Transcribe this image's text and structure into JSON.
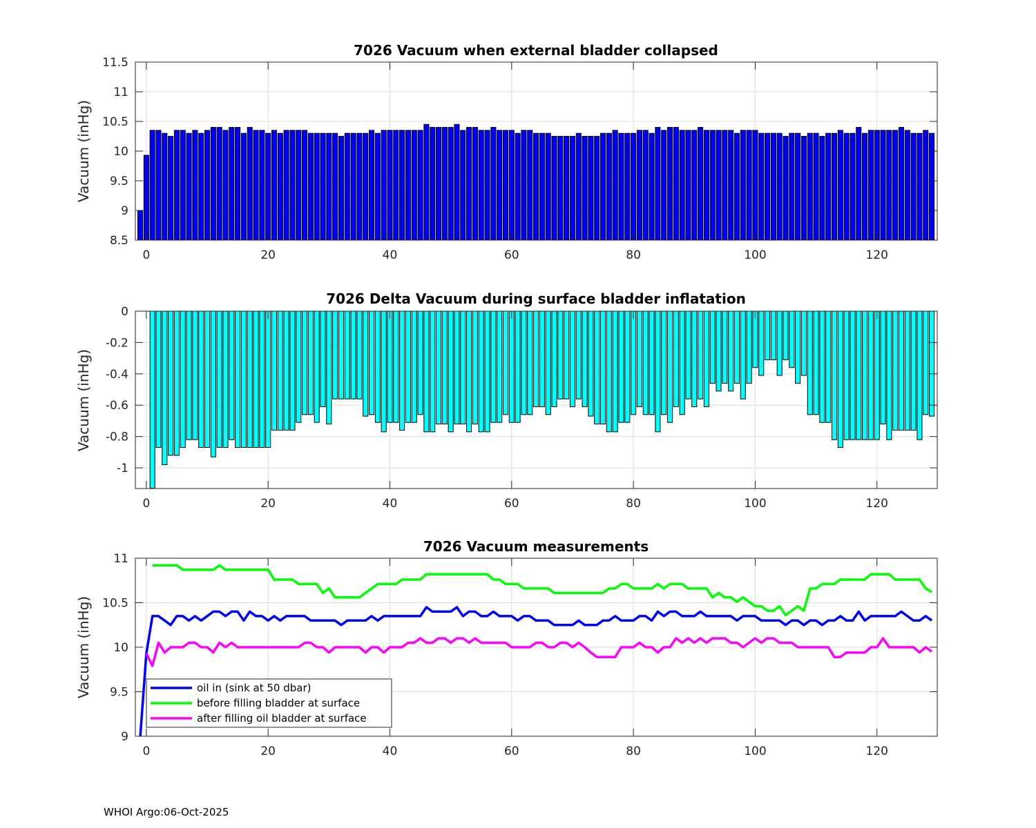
{
  "footer": "WHOI Argo:06-Oct-2025",
  "chart_data": [
    {
      "type": "bar",
      "title": "7026 Vacuum when external bladder collapsed",
      "xlabel": "",
      "ylabel": "Vacuum (inHg)",
      "xlim": [
        -1.8,
        129.9
      ],
      "ylim": [
        8.5,
        11.5
      ],
      "xticks": [
        0,
        20,
        40,
        60,
        80,
        100,
        120
      ],
      "xtick_labels": [
        "0",
        "20",
        "40",
        "60",
        "80",
        "100",
        "120"
      ],
      "yticks": [
        8.5,
        9,
        9.5,
        10,
        10.5,
        11,
        11.5
      ],
      "ytick_labels": [
        "8.5",
        "9",
        "9.5",
        "10",
        "10.5",
        "11",
        "11.5"
      ],
      "grid": true,
      "color": "#0000ff",
      "x_start": -1,
      "values": [
        9.0,
        9.93,
        10.35,
        10.35,
        10.3,
        10.25,
        10.35,
        10.35,
        10.3,
        10.35,
        10.3,
        10.35,
        10.4,
        10.4,
        10.35,
        10.4,
        10.4,
        10.3,
        10.4,
        10.35,
        10.35,
        10.3,
        10.35,
        10.3,
        10.35,
        10.35,
        10.35,
        10.35,
        10.3,
        10.3,
        10.3,
        10.3,
        10.3,
        10.25,
        10.3,
        10.3,
        10.3,
        10.3,
        10.35,
        10.3,
        10.35,
        10.35,
        10.35,
        10.35,
        10.35,
        10.35,
        10.35,
        10.45,
        10.4,
        10.4,
        10.4,
        10.4,
        10.45,
        10.35,
        10.4,
        10.4,
        10.35,
        10.35,
        10.4,
        10.35,
        10.35,
        10.35,
        10.3,
        10.35,
        10.35,
        10.3,
        10.3,
        10.3,
        10.25,
        10.25,
        10.25,
        10.25,
        10.3,
        10.25,
        10.25,
        10.25,
        10.3,
        10.3,
        10.35,
        10.3,
        10.3,
        10.3,
        10.35,
        10.35,
        10.3,
        10.4,
        10.35,
        10.4,
        10.4,
        10.35,
        10.35,
        10.35,
        10.4,
        10.35,
        10.35,
        10.35,
        10.35,
        10.35,
        10.3,
        10.35,
        10.35,
        10.35,
        10.3,
        10.3,
        10.3,
        10.3,
        10.25,
        10.3,
        10.3,
        10.25,
        10.3,
        10.3,
        10.25,
        10.3,
        10.3,
        10.35,
        10.3,
        10.3,
        10.4,
        10.3,
        10.35,
        10.35,
        10.35,
        10.35,
        10.35,
        10.4,
        10.35,
        10.3,
        10.3,
        10.35,
        10.3
      ]
    },
    {
      "type": "bar",
      "title": "7026 Delta Vacuum during surface bladder inflatation",
      "xlabel": "",
      "ylabel": "Vacuum (inHg)",
      "xlim": [
        -1.8,
        129.9
      ],
      "ylim": [
        -1.132,
        0
      ],
      "xticks": [
        0,
        20,
        40,
        60,
        80,
        100,
        120
      ],
      "xtick_labels": [
        "0",
        "20",
        "40",
        "60",
        "80",
        "100",
        "120"
      ],
      "yticks": [
        -1,
        -0.8,
        -0.6,
        -0.4,
        -0.2,
        0
      ],
      "ytick_labels": [
        "-1",
        "-0.8",
        "-0.6",
        "-0.4",
        "-0.2",
        "0"
      ],
      "grid": true,
      "color": "#00ffff",
      "x_start": 1,
      "values": [
        -1.13,
        -0.87,
        -0.98,
        -0.92,
        -0.92,
        -0.87,
        -0.82,
        -0.82,
        -0.87,
        -0.87,
        -0.93,
        -0.87,
        -0.87,
        -0.82,
        -0.87,
        -0.87,
        -0.87,
        -0.87,
        -0.87,
        -0.87,
        -0.76,
        -0.76,
        -0.76,
        -0.76,
        -0.71,
        -0.66,
        -0.66,
        -0.71,
        -0.61,
        -0.72,
        -0.56,
        -0.56,
        -0.56,
        -0.56,
        -0.56,
        -0.67,
        -0.66,
        -0.71,
        -0.77,
        -0.71,
        -0.71,
        -0.76,
        -0.71,
        -0.71,
        -0.66,
        -0.77,
        -0.77,
        -0.72,
        -0.72,
        -0.77,
        -0.72,
        -0.72,
        -0.77,
        -0.72,
        -0.77,
        -0.77,
        -0.71,
        -0.71,
        -0.66,
        -0.71,
        -0.71,
        -0.66,
        -0.66,
        -0.61,
        -0.61,
        -0.66,
        -0.61,
        -0.56,
        -0.56,
        -0.61,
        -0.56,
        -0.61,
        -0.67,
        -0.72,
        -0.72,
        -0.77,
        -0.77,
        -0.71,
        -0.71,
        -0.66,
        -0.61,
        -0.66,
        -0.66,
        -0.77,
        -0.66,
        -0.71,
        -0.61,
        -0.66,
        -0.56,
        -0.61,
        -0.56,
        -0.61,
        -0.46,
        -0.51,
        -0.46,
        -0.51,
        -0.46,
        -0.56,
        -0.46,
        -0.36,
        -0.41,
        -0.31,
        -0.31,
        -0.41,
        -0.31,
        -0.36,
        -0.46,
        -0.41,
        -0.66,
        -0.66,
        -0.71,
        -0.71,
        -0.82,
        -0.87,
        -0.82,
        -0.82,
        -0.82,
        -0.82,
        -0.82,
        -0.82,
        -0.72,
        -0.82,
        -0.76,
        -0.76,
        -0.76,
        -0.76,
        -0.82,
        -0.66,
        -0.67
      ]
    },
    {
      "type": "line",
      "title": "7026 Vacuum measurements",
      "xlabel": "",
      "ylabel": "Vacuum (inHg)",
      "xlim": [
        -1.8,
        129.9
      ],
      "ylim": [
        9,
        11
      ],
      "xticks": [
        0,
        20,
        40,
        60,
        80,
        100,
        120
      ],
      "xtick_labels": [
        "0",
        "20",
        "40",
        "60",
        "80",
        "100",
        "120"
      ],
      "yticks": [
        9,
        9.5,
        10,
        10.5,
        11
      ],
      "ytick_labels": [
        "9",
        "9.5",
        "10",
        "10.5",
        "11"
      ],
      "grid": true,
      "legend_position": "bottom-left",
      "series": [
        {
          "name": "oil in (sink at 50 dbar)",
          "color": "#0000ff",
          "x_start": -1,
          "values": [
            9.0,
            9.93,
            10.35,
            10.35,
            10.3,
            10.25,
            10.35,
            10.35,
            10.3,
            10.35,
            10.3,
            10.35,
            10.4,
            10.4,
            10.35,
            10.4,
            10.4,
            10.3,
            10.4,
            10.35,
            10.35,
            10.3,
            10.35,
            10.3,
            10.35,
            10.35,
            10.35,
            10.35,
            10.3,
            10.3,
            10.3,
            10.3,
            10.3,
            10.25,
            10.3,
            10.3,
            10.3,
            10.3,
            10.35,
            10.3,
            10.35,
            10.35,
            10.35,
            10.35,
            10.35,
            10.35,
            10.35,
            10.45,
            10.4,
            10.4,
            10.4,
            10.4,
            10.45,
            10.35,
            10.4,
            10.4,
            10.35,
            10.35,
            10.4,
            10.35,
            10.35,
            10.35,
            10.3,
            10.35,
            10.35,
            10.3,
            10.3,
            10.3,
            10.25,
            10.25,
            10.25,
            10.25,
            10.3,
            10.25,
            10.25,
            10.25,
            10.3,
            10.3,
            10.35,
            10.3,
            10.3,
            10.3,
            10.35,
            10.35,
            10.3,
            10.4,
            10.35,
            10.4,
            10.4,
            10.35,
            10.35,
            10.35,
            10.4,
            10.35,
            10.35,
            10.35,
            10.35,
            10.35,
            10.3,
            10.35,
            10.35,
            10.35,
            10.3,
            10.3,
            10.3,
            10.3,
            10.25,
            10.3,
            10.3,
            10.25,
            10.3,
            10.3,
            10.25,
            10.3,
            10.3,
            10.35,
            10.3,
            10.3,
            10.4,
            10.3,
            10.35,
            10.35,
            10.35,
            10.35,
            10.35,
            10.4,
            10.35,
            10.3,
            10.3,
            10.35,
            10.3
          ]
        },
        {
          "name": "before filling bladder at surface",
          "color": "#00ff00",
          "x_start": 1,
          "values": [
            10.92,
            10.92,
            10.92,
            10.92,
            10.92,
            10.87,
            10.87,
            10.87,
            10.87,
            10.87,
            10.87,
            10.92,
            10.87,
            10.87,
            10.87,
            10.87,
            10.87,
            10.87,
            10.87,
            10.87,
            10.76,
            10.76,
            10.76,
            10.76,
            10.71,
            10.71,
            10.71,
            10.71,
            10.61,
            10.66,
            10.56,
            10.56,
            10.56,
            10.56,
            10.56,
            10.61,
            10.66,
            10.71,
            10.71,
            10.71,
            10.71,
            10.76,
            10.76,
            10.76,
            10.76,
            10.82,
            10.82,
            10.82,
            10.82,
            10.82,
            10.82,
            10.82,
            10.82,
            10.82,
            10.82,
            10.82,
            10.76,
            10.76,
            10.71,
            10.71,
            10.71,
            10.66,
            10.66,
            10.66,
            10.66,
            10.66,
            10.61,
            10.61,
            10.61,
            10.61,
            10.61,
            10.61,
            10.61,
            10.61,
            10.61,
            10.66,
            10.66,
            10.71,
            10.71,
            10.66,
            10.66,
            10.66,
            10.66,
            10.71,
            10.66,
            10.71,
            10.71,
            10.71,
            10.66,
            10.66,
            10.66,
            10.66,
            10.56,
            10.61,
            10.56,
            10.56,
            10.51,
            10.56,
            10.51,
            10.46,
            10.46,
            10.41,
            10.41,
            10.46,
            10.36,
            10.41,
            10.46,
            10.41,
            10.66,
            10.66,
            10.71,
            10.71,
            10.71,
            10.76,
            10.76,
            10.76,
            10.76,
            10.76,
            10.82,
            10.82,
            10.82,
            10.82,
            10.76,
            10.76,
            10.76,
            10.76,
            10.76,
            10.66,
            10.62
          ]
        },
        {
          "name": "after filling oil bladder at surface",
          "color": "#ff00ff",
          "x_start": 0,
          "values": [
            9.93,
            9.79,
            10.05,
            9.94,
            10.0,
            10.0,
            10.0,
            10.05,
            10.05,
            10.0,
            10.0,
            9.94,
            10.05,
            10.0,
            10.05,
            10.0,
            10.0,
            10.0,
            10.0,
            10.0,
            10.0,
            10.0,
            10.0,
            10.0,
            10.0,
            10.0,
            10.05,
            10.05,
            10.0,
            10.0,
            9.94,
            10.0,
            10.0,
            10.0,
            10.0,
            10.0,
            9.94,
            10.0,
            10.0,
            9.94,
            10.0,
            10.0,
            10.0,
            10.05,
            10.05,
            10.1,
            10.05,
            10.05,
            10.1,
            10.1,
            10.05,
            10.1,
            10.1,
            10.05,
            10.1,
            10.05,
            10.05,
            10.05,
            10.05,
            10.05,
            10.0,
            10.0,
            10.0,
            10.0,
            10.05,
            10.05,
            10.0,
            10.0,
            10.05,
            10.05,
            10.0,
            10.05,
            10.0,
            9.94,
            9.89,
            9.89,
            9.89,
            9.89,
            10.0,
            10.0,
            10.0,
            10.05,
            10.0,
            10.0,
            9.94,
            10.0,
            10.0,
            10.1,
            10.05,
            10.1,
            10.05,
            10.1,
            10.05,
            10.1,
            10.1,
            10.1,
            10.05,
            10.05,
            10.0,
            10.05,
            10.1,
            10.05,
            10.1,
            10.1,
            10.05,
            10.05,
            10.05,
            10.0,
            10.0,
            10.0,
            10.0,
            10.0,
            10.0,
            9.89,
            9.89,
            9.94,
            9.94,
            9.94,
            9.94,
            10.0,
            10.0,
            10.1,
            10.0,
            10.0,
            10.0,
            10.0,
            10.0,
            9.94,
            10.0,
            9.95
          ]
        }
      ]
    }
  ]
}
